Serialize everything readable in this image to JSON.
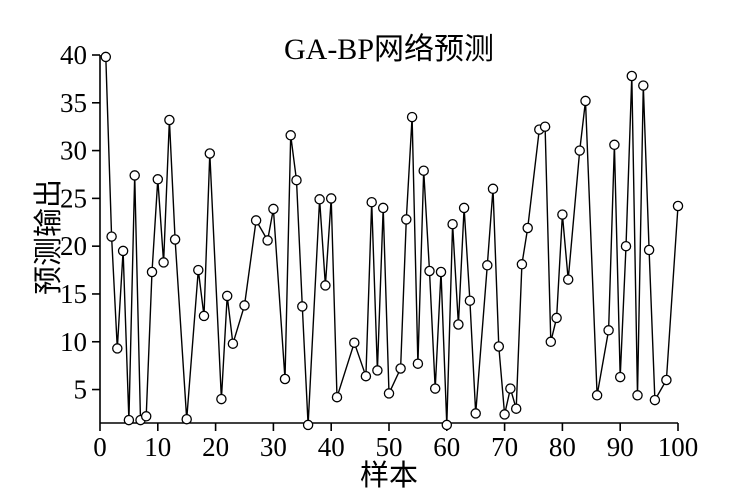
{
  "chart_data": {
    "type": "line",
    "title": "GA-BP网络预测",
    "xlabel": "样本",
    "ylabel": "预测输出",
    "xlim": [
      0,
      100
    ],
    "ylim": [
      1.5,
      40
    ],
    "x_ticks": [
      0,
      10,
      20,
      30,
      40,
      50,
      60,
      70,
      80,
      90,
      100
    ],
    "y_ticks": [
      5,
      10,
      15,
      20,
      25,
      30,
      35,
      40
    ],
    "grid": false,
    "legend": "none",
    "marker": "circle",
    "line_color": "#000000",
    "marker_edge_color": "#000000",
    "marker_fill": "#ffffff",
    "axis_color": "#000000",
    "series": [
      {
        "name": "预测输出",
        "x": [
          1,
          2,
          3,
          4,
          5,
          6,
          7,
          8,
          9,
          10,
          11,
          12,
          13,
          15,
          17,
          18,
          19,
          21,
          22,
          23,
          25,
          27,
          29,
          30,
          32,
          33,
          34,
          35,
          36,
          38,
          39,
          40,
          41,
          44,
          46,
          47,
          48,
          49,
          50,
          52,
          53,
          54,
          55,
          56,
          57,
          58,
          59,
          60,
          61,
          62,
          63,
          64,
          65,
          67,
          68,
          69,
          70,
          71,
          72,
          73,
          74,
          76,
          77,
          78,
          79,
          80,
          81,
          83,
          84,
          86,
          88,
          89,
          90,
          91,
          92,
          93,
          94,
          95,
          96,
          98,
          100
        ],
        "y": [
          39.8,
          21,
          9.3,
          19.5,
          1.8,
          27.4,
          1.8,
          2.2,
          17.3,
          27,
          18.3,
          33.2,
          20.7,
          1.9,
          17.5,
          12.7,
          29.7,
          4,
          14.8,
          9.8,
          13.8,
          22.7,
          20.6,
          23.9,
          6.1,
          31.6,
          26.9,
          13.7,
          1.3,
          24.9,
          15.9,
          25,
          4.2,
          9.9,
          6.4,
          24.6,
          7,
          24,
          4.6,
          7.2,
          22.8,
          33.5,
          7.7,
          27.9,
          17.4,
          5.1,
          17.3,
          1.3,
          22.3,
          11.8,
          24,
          14.3,
          2.5,
          18,
          26,
          9.5,
          2.4,
          5.1,
          3,
          18.1,
          21.9,
          32.2,
          32.5,
          10,
          12.5,
          23.3,
          16.5,
          30,
          35.2,
          4.4,
          11.2,
          30.6,
          6.3,
          20,
          37.8,
          4.4,
          36.8,
          19.6,
          3.9,
          6,
          24.2
        ]
      }
    ]
  }
}
